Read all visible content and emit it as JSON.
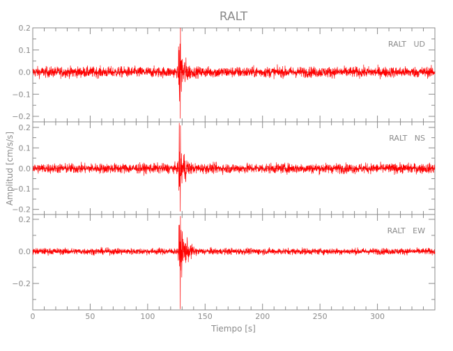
{
  "chart_data": {
    "type": "line",
    "title": "RALT",
    "xlabel": "Tiempo [s]",
    "ylabel": "Amplitud [cm/s/s]",
    "xlim": [
      0,
      350
    ],
    "xticks": [
      0,
      50,
      100,
      150,
      200,
      250,
      300
    ],
    "grid": false,
    "line_color": "#ff0000",
    "axis_color": "#8a8a8a",
    "panels": [
      {
        "label": "RALT   UD",
        "ylim": [
          -0.225,
          0.2
        ],
        "yticks": [
          0.2,
          0.1,
          0.0,
          -0.1,
          -0.2
        ],
        "ytick_labels": [
          "0.2",
          "0.1",
          "0.0",
          "−0.1",
          "−0.2"
        ],
        "noise_amplitude": 0.012,
        "events": [
          {
            "start": 33,
            "end": 52,
            "peak": 0.05
          },
          {
            "start": 113,
            "end": 126,
            "peak": 0.045
          },
          {
            "start": 126,
            "end": 145,
            "peak": 0.21
          },
          {
            "start": 158,
            "end": 168,
            "peak": 0.06
          },
          {
            "start": 237,
            "end": 246,
            "peak": 0.045
          },
          {
            "start": 325,
            "end": 335,
            "peak": 0.04
          }
        ]
      },
      {
        "label": "RALT   NS",
        "ylim": [
          -0.225,
          0.227
        ],
        "yticks": [
          0.2,
          0.1,
          0.0,
          -0.1,
          -0.2
        ],
        "ytick_labels": [
          "0.2",
          "0.1",
          "0.0",
          "−0.1",
          "−0.2"
        ],
        "noise_amplitude": 0.012,
        "events": [
          {
            "start": 33,
            "end": 52,
            "peak": 0.04
          },
          {
            "start": 113,
            "end": 126,
            "peak": 0.04
          },
          {
            "start": 126,
            "end": 145,
            "peak": 0.21
          },
          {
            "start": 158,
            "end": 168,
            "peak": 0.04
          },
          {
            "start": 237,
            "end": 246,
            "peak": 0.04
          },
          {
            "start": 325,
            "end": 335,
            "peak": 0.035
          }
        ]
      },
      {
        "label": "RALT   EW",
        "ylim": [
          -0.365,
          0.23
        ],
        "yticks": [
          0.2,
          0.0,
          -0.2
        ],
        "ytick_labels": [
          "0.2",
          "0.0",
          "−0.2"
        ],
        "noise_amplitude": 0.01,
        "events": [
          {
            "start": 33,
            "end": 52,
            "peak": 0.03
          },
          {
            "start": 113,
            "end": 126,
            "peak": 0.04
          },
          {
            "start": 126,
            "end": 150,
            "peak": 0.22,
            "min": -0.36
          },
          {
            "start": 158,
            "end": 168,
            "peak": 0.03
          },
          {
            "start": 240,
            "end": 247,
            "peak": 0.035
          },
          {
            "start": 325,
            "end": 335,
            "peak": 0.03
          }
        ]
      }
    ]
  }
}
